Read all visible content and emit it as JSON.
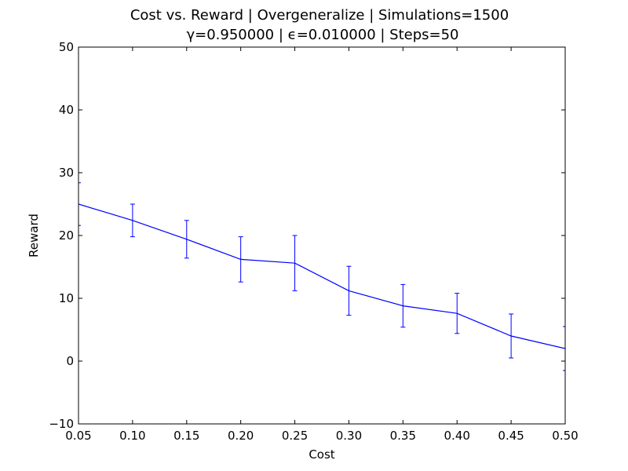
{
  "chart_data": {
    "type": "line",
    "title": "Cost vs. Reward | Overgeneralize | Simulations=1500",
    "subtitle": "γ=0.950000 | ϵ=0.010000 | Steps=50",
    "xlabel": "Cost",
    "ylabel": "Reward",
    "xlim": [
      0.05,
      0.5
    ],
    "ylim": [
      -10,
      50
    ],
    "x_ticks": [
      "0.05",
      "0.10",
      "0.15",
      "0.20",
      "0.25",
      "0.30",
      "0.35",
      "0.40",
      "0.45",
      "0.50"
    ],
    "y_ticks": [
      "−10",
      "0",
      "10",
      "20",
      "30",
      "40",
      "50"
    ],
    "grid": false,
    "colors": {
      "line": "#0000ff",
      "axes": "#000000",
      "background": "#ffffff"
    },
    "series": [
      {
        "x": [
          0.05,
          0.1,
          0.15,
          0.2,
          0.25,
          0.3,
          0.35,
          0.4,
          0.45,
          0.5
        ],
        "y": [
          25.0,
          22.4,
          19.4,
          16.2,
          15.6,
          11.2,
          8.8,
          7.6,
          4.0,
          2.0
        ],
        "err": [
          3.4,
          2.6,
          3.0,
          3.6,
          4.4,
          3.9,
          3.4,
          3.2,
          3.5,
          3.5
        ]
      }
    ]
  }
}
